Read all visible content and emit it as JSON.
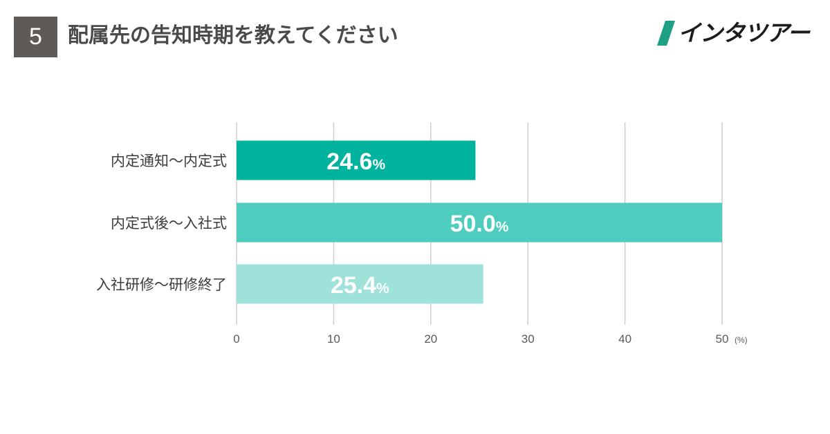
{
  "header": {
    "question_number": "5",
    "title": "配属先の告知時期を教えてください",
    "brand": "インタツアー",
    "brand_color": "#1ea084"
  },
  "chart_data": {
    "type": "bar",
    "orientation": "horizontal",
    "title": "配属先の告知時期を教えてください",
    "categories": [
      "内定通知～内定式",
      "内定式後～入社式",
      "入社研修～研修終了"
    ],
    "values": [
      24.6,
      50.0,
      25.4
    ],
    "value_labels": [
      "24.6",
      "50.0",
      "25.4"
    ],
    "value_unit": "%",
    "bar_colors": [
      "#00b39e",
      "#4ecdbe",
      "#9ee2da"
    ],
    "xlim": [
      0,
      50
    ],
    "xticks": [
      "0",
      "10",
      "20",
      "30",
      "40",
      "50"
    ],
    "xlabel": "(%)",
    "ylabel": "",
    "grid": true,
    "gridline_color": "#cfcfcf"
  }
}
